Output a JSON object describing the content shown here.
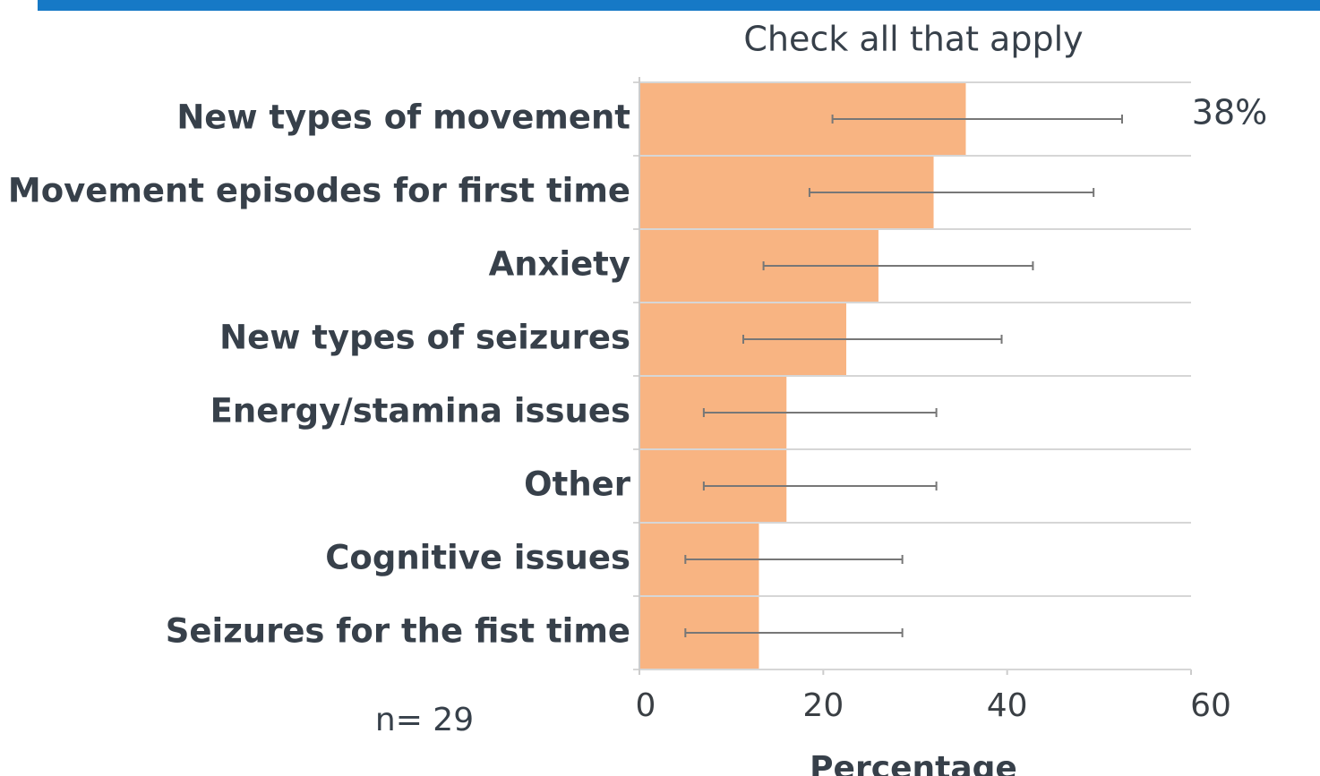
{
  "chart_data": {
    "type": "bar",
    "orientation": "horizontal",
    "title": "Check all that apply",
    "annotation": "38%",
    "note": "n= 29",
    "x_label": "Percentage",
    "categories": [
      "New types of movement",
      "Movement episodes for first time",
      "Anxiety",
      "New types of seizures",
      "Energy/stamina issues",
      "Other",
      "Cognitive issues",
      "Seizures for the fist time"
    ],
    "values": [
      35.5,
      32,
      26,
      22.5,
      16,
      16,
      13,
      13
    ],
    "error_low": [
      21,
      18.5,
      13.5,
      11.3,
      7,
      7,
      5,
      5
    ],
    "error_high": [
      52.5,
      49.4,
      42.8,
      39.4,
      32.3,
      32.3,
      28.6,
      28.6
    ],
    "color": "#f8b482",
    "xlim": [
      0,
      60
    ],
    "xticks": [
      0,
      20,
      40,
      60
    ],
    "grid": true
  }
}
